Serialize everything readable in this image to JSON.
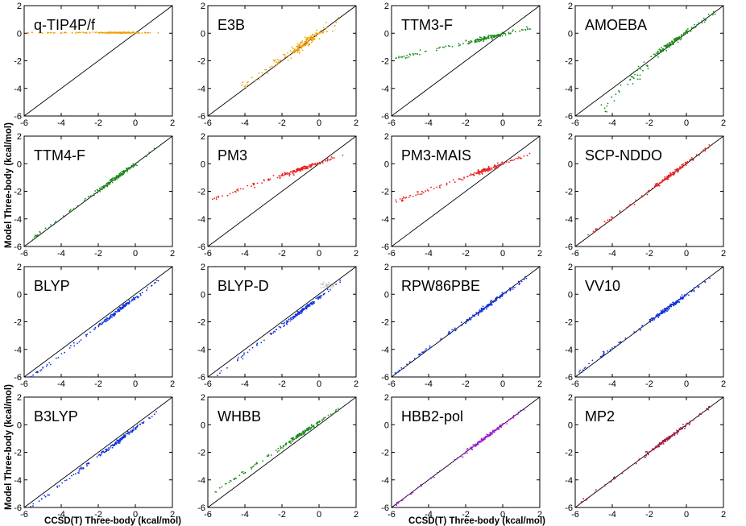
{
  "figure": {
    "xlabel": "CCSD(T) Three-body (kcal/mol)",
    "ylabel": "Model Three-body (kcal/mol)",
    "xlim": [
      -6,
      2
    ],
    "ylim": [
      -6,
      2
    ],
    "ticks": [
      -6,
      -4,
      -2,
      0,
      2
    ]
  },
  "colors": {
    "orange": "#f0a000",
    "green": "#1a8c1a",
    "red": "#e82020",
    "blue": "#1030e0",
    "purple": "#a020d0",
    "maroon": "#a02040",
    "gray": "#c8c8c8",
    "line": "#000000"
  },
  "chart_data": [
    {
      "type": "scatter",
      "title": "q-TIP4P/f",
      "color": "orange",
      "model": {
        "kind": "flat",
        "a": 0.04
      },
      "x_range": [
        -6,
        1.3
      ]
    },
    {
      "type": "scatter",
      "title": "E3B",
      "color": "orange",
      "model": {
        "kind": "e3b"
      },
      "x_range": [
        -4.2,
        1.2
      ]
    },
    {
      "type": "scatter",
      "title": "TTM3-F",
      "color": "green",
      "model": {
        "kind": "linear",
        "a": 0.3,
        "b": -0.1
      },
      "x_range": [
        -5.8,
        1.6
      ]
    },
    {
      "type": "scatter",
      "title": "AMOEBA",
      "color": "green",
      "model": {
        "kind": "amoeba"
      },
      "x_range": [
        -4.6,
        1.6
      ]
    },
    {
      "type": "scatter",
      "title": "TTM4-F",
      "color": "green",
      "model": {
        "kind": "linear",
        "a": 0.98,
        "b": 0.0
      },
      "x_range": [
        -5.7,
        1.3
      ]
    },
    {
      "type": "scatter",
      "title": "PM3",
      "color": "red",
      "model": {
        "kind": "linear",
        "a": 0.45,
        "b": 0.05
      },
      "x_range": [
        -5.8,
        1.3
      ]
    },
    {
      "type": "scatter",
      "title": "PM3-MAIS",
      "color": "red",
      "model": {
        "kind": "linear",
        "a": 0.48,
        "b": 0.0
      },
      "x_range": [
        -5.8,
        1.6
      ]
    },
    {
      "type": "scatter",
      "title": "SCP-NDDO",
      "color": "red",
      "model": {
        "kind": "linear",
        "a": 0.98,
        "b": 0.0
      },
      "x_range": [
        -5.8,
        1.3
      ]
    },
    {
      "type": "scatter",
      "title": "BLYP",
      "color": "blue",
      "model": {
        "kind": "linear",
        "a": 1.02,
        "b": -0.25
      },
      "x_range": [
        -5.8,
        1.3
      ]
    },
    {
      "type": "scatter",
      "title": "BLYP-D",
      "color": "blue",
      "model": {
        "kind": "linear",
        "a": 1.02,
        "b": -0.25
      },
      "x_range": [
        -5.8,
        1.3
      ],
      "extra": "gray"
    },
    {
      "type": "scatter",
      "title": "RPW86PBE",
      "color": "blue",
      "model": {
        "kind": "linear",
        "a": 0.97,
        "b": -0.05
      },
      "x_range": [
        -5.8,
        1.3
      ]
    },
    {
      "type": "scatter",
      "title": "VV10",
      "color": "blue",
      "model": {
        "kind": "linear",
        "a": 0.97,
        "b": -0.05
      },
      "x_range": [
        -5.8,
        1.3
      ]
    },
    {
      "type": "scatter",
      "title": "B3LYP",
      "color": "blue",
      "model": {
        "kind": "linear",
        "a": 1.02,
        "b": -0.25
      },
      "x_range": [
        -5.8,
        1.3
      ]
    },
    {
      "type": "scatter",
      "title": "WHBB",
      "color": "green",
      "model": {
        "kind": "linear",
        "a": 0.9,
        "b": 0.2
      },
      "x_range": [
        -5.6,
        1.2
      ]
    },
    {
      "type": "scatter",
      "title": "HBB2-pol",
      "color": "purple",
      "model": {
        "kind": "linear",
        "a": 1.0,
        "b": 0.0
      },
      "x_range": [
        -5.8,
        1.3
      ]
    },
    {
      "type": "scatter",
      "title": "MP2",
      "color": "maroon",
      "model": {
        "kind": "linear",
        "a": 1.0,
        "b": 0.0
      },
      "x_range": [
        -5.8,
        1.3
      ]
    }
  ]
}
